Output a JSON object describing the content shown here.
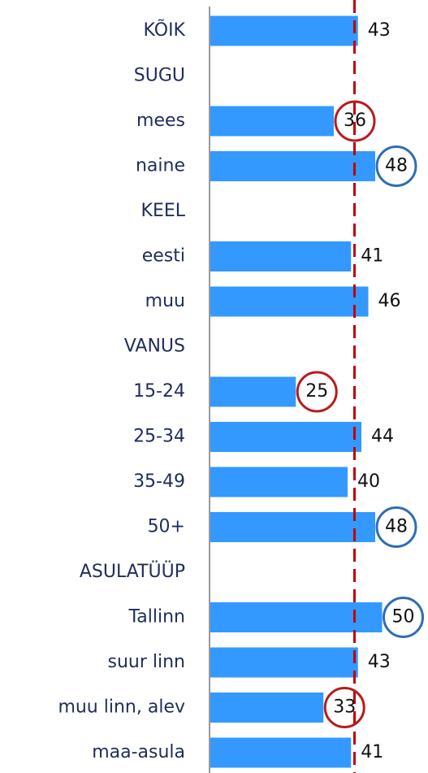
{
  "chart_data": {
    "type": "bar",
    "orientation": "horizontal",
    "categories": [
      "KÕIK",
      "SUGU",
      "mees",
      "naine",
      "KEEL",
      "eesti",
      "muu",
      "VANUS",
      "15-24",
      "25-34",
      "35-49",
      "50+",
      "ASULATÜÜP",
      "Tallinn",
      "suur linn",
      "muu linn, alev",
      "maa-asula"
    ],
    "values": [
      43,
      null,
      36,
      48,
      null,
      41,
      46,
      null,
      25,
      44,
      40,
      48,
      null,
      50,
      43,
      33,
      41
    ],
    "highlights": [
      null,
      null,
      "#b71c1c",
      "#2e6db4",
      null,
      null,
      null,
      null,
      "#b71c1c",
      null,
      null,
      "#2e6db4",
      null,
      "#2e6db4",
      null,
      "#b71c1c",
      null
    ],
    "color": "#3399ff",
    "reference_line": 42,
    "reference_color": "#c00000",
    "xlim": [
      0,
      60
    ]
  }
}
